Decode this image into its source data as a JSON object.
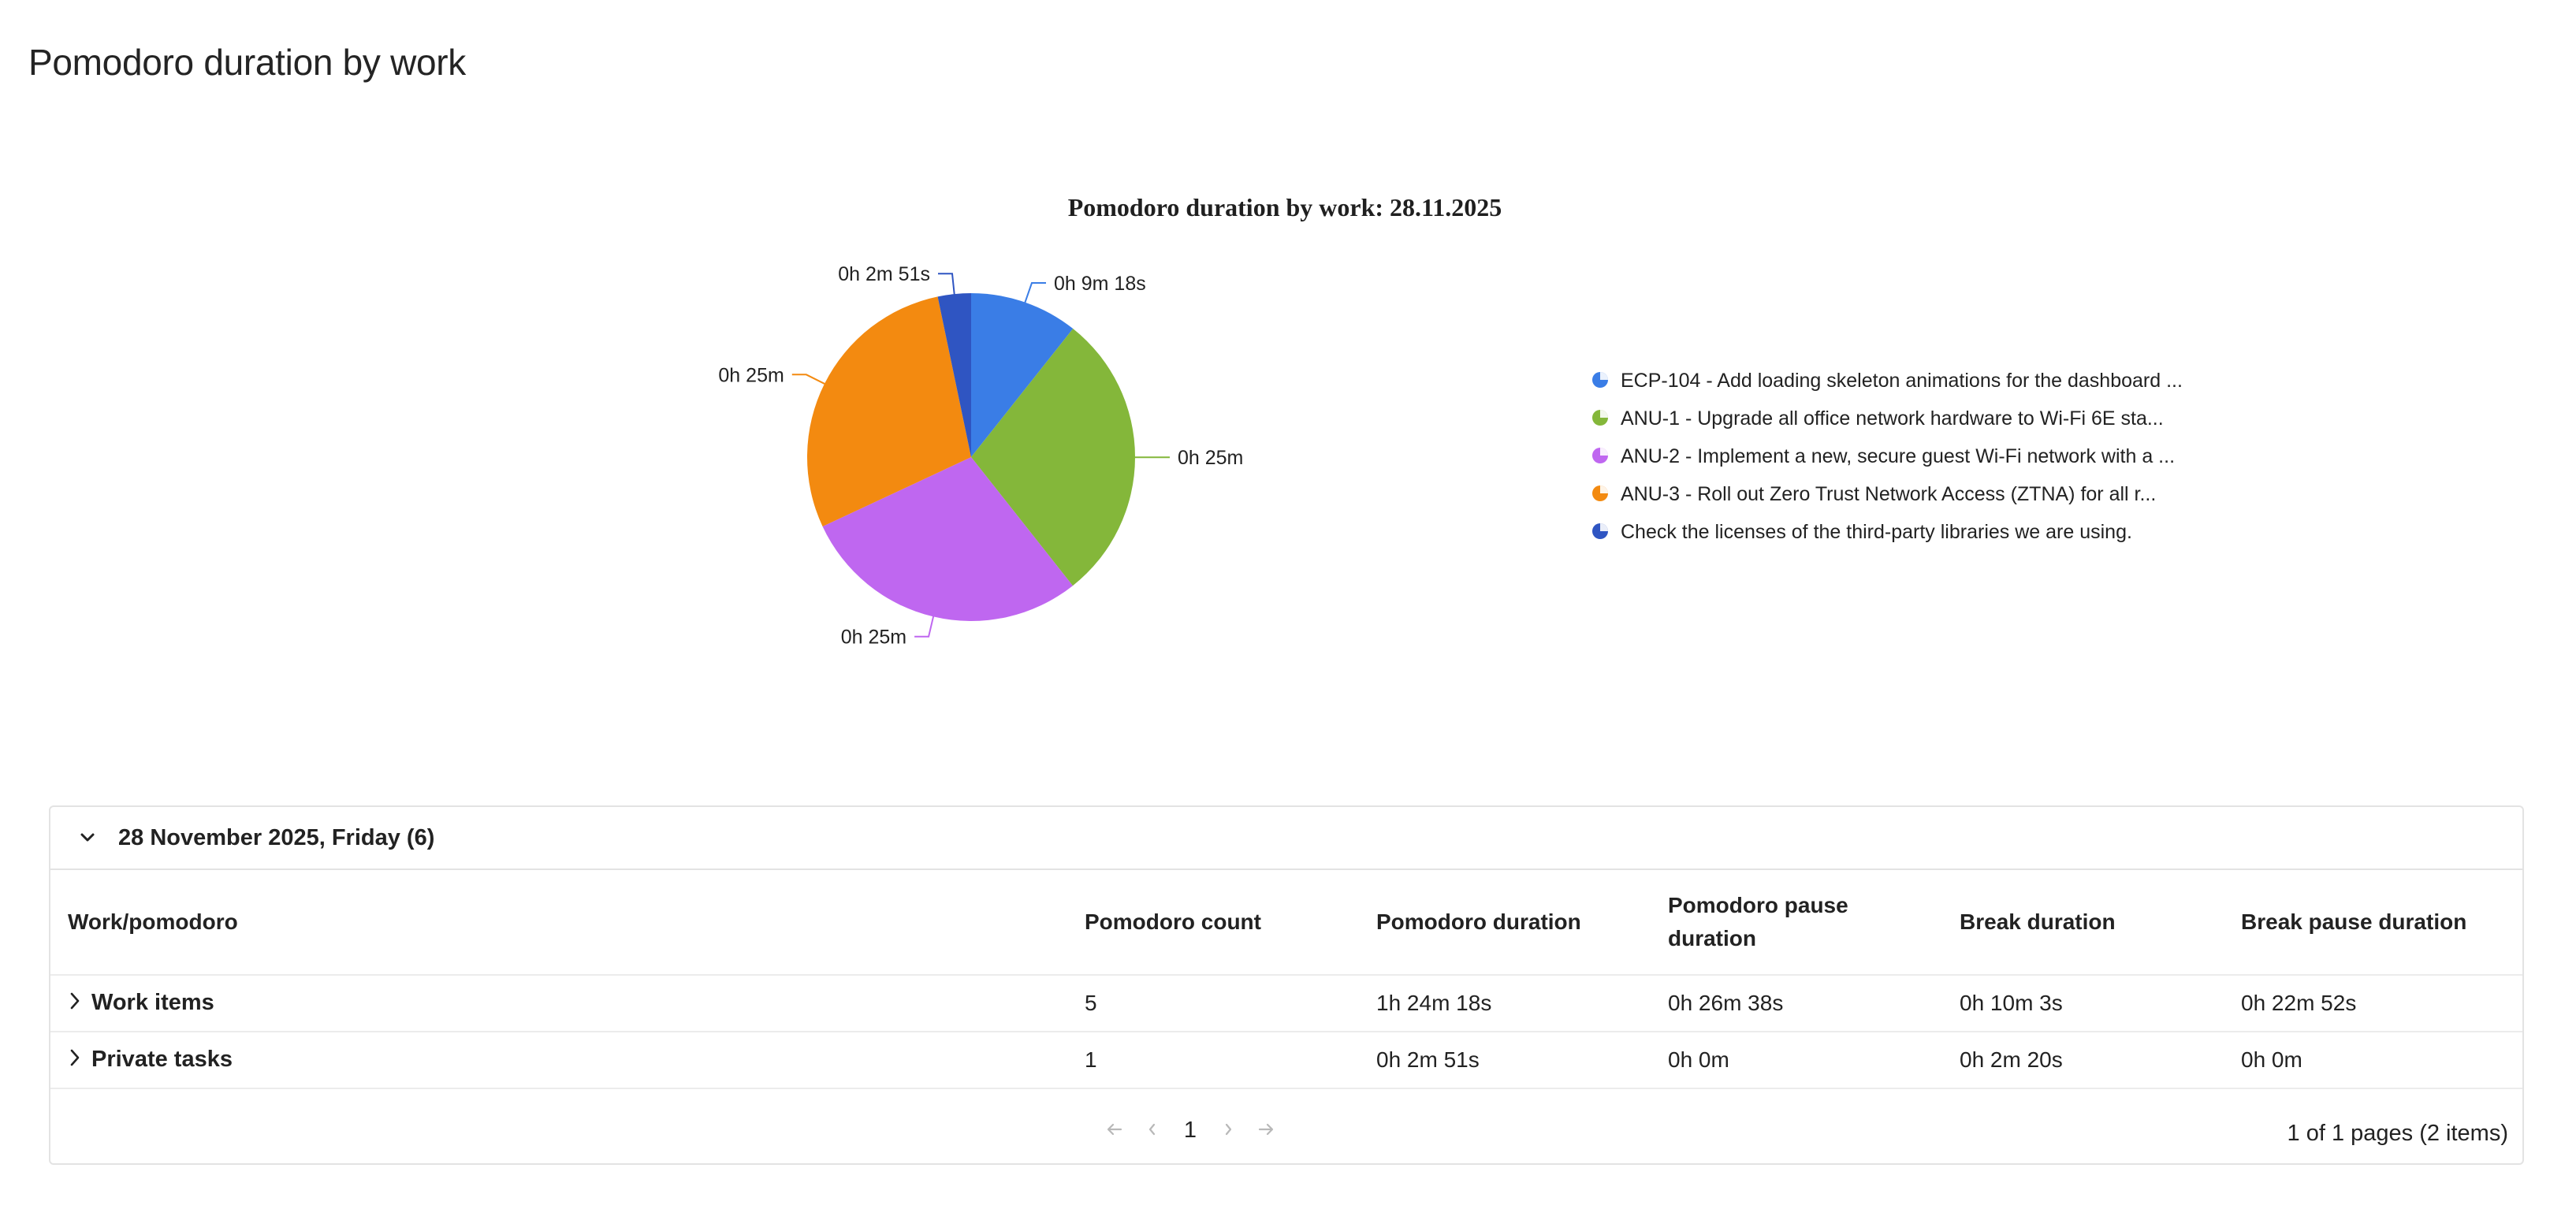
{
  "page": {
    "title": "Pomodoro duration by work"
  },
  "chart_data": {
    "type": "pie",
    "title": "Pomodoro duration by work: 28.11.2025",
    "slices": [
      {
        "label": "0h 9m 18s",
        "value": 558,
        "color": "#3a7de6",
        "legend": "ECP-104 - Add loading skeleton animations for the dashboard ..."
      },
      {
        "label": "0h 25m",
        "value": 1500,
        "color": "#84b73a",
        "legend": "ANU-1 - Upgrade all office network hardware to Wi-Fi 6E sta..."
      },
      {
        "label": "0h 25m",
        "value": 1500,
        "color": "#bf67f0",
        "legend": "ANU-2 - Implement a new, secure guest Wi-Fi network with a ..."
      },
      {
        "label": "0h 25m",
        "value": 1500,
        "color": "#f38a10",
        "legend": "ANU-3 - Roll out Zero Trust Network Access (ZTNA) for all r..."
      },
      {
        "label": "0h 2m 51s",
        "value": 171,
        "color": "#2f55c2",
        "legend": "Check the licenses of the third-party libraries we are using."
      }
    ],
    "legend_position": "right"
  },
  "table": {
    "group_title": "28 November 2025, Friday (6)",
    "columns": [
      "Work/pomodoro",
      "Pomodoro count",
      "Pomodoro duration",
      "Pomodoro pause duration",
      "Break duration",
      "Break pause duration"
    ],
    "rows": [
      {
        "name": "Work items",
        "count": "5",
        "pomodoro_duration": "1h 24m 18s",
        "pomodoro_pause": "0h 26m 38s",
        "break_duration": "0h 10m 3s",
        "break_pause": "0h 22m 52s"
      },
      {
        "name": "Private tasks",
        "count": "1",
        "pomodoro_duration": "0h 2m 51s",
        "pomodoro_pause": "0h 0m",
        "break_duration": "0h 2m 20s",
        "break_pause": "0h 0m"
      }
    ]
  },
  "pagination": {
    "first_icon": "arrow-first-icon",
    "prev_icon": "chevron-left-icon",
    "next_icon": "chevron-right-icon",
    "last_icon": "arrow-last-icon",
    "current_page": "1",
    "summary": "1 of 1 pages (2 items)"
  }
}
